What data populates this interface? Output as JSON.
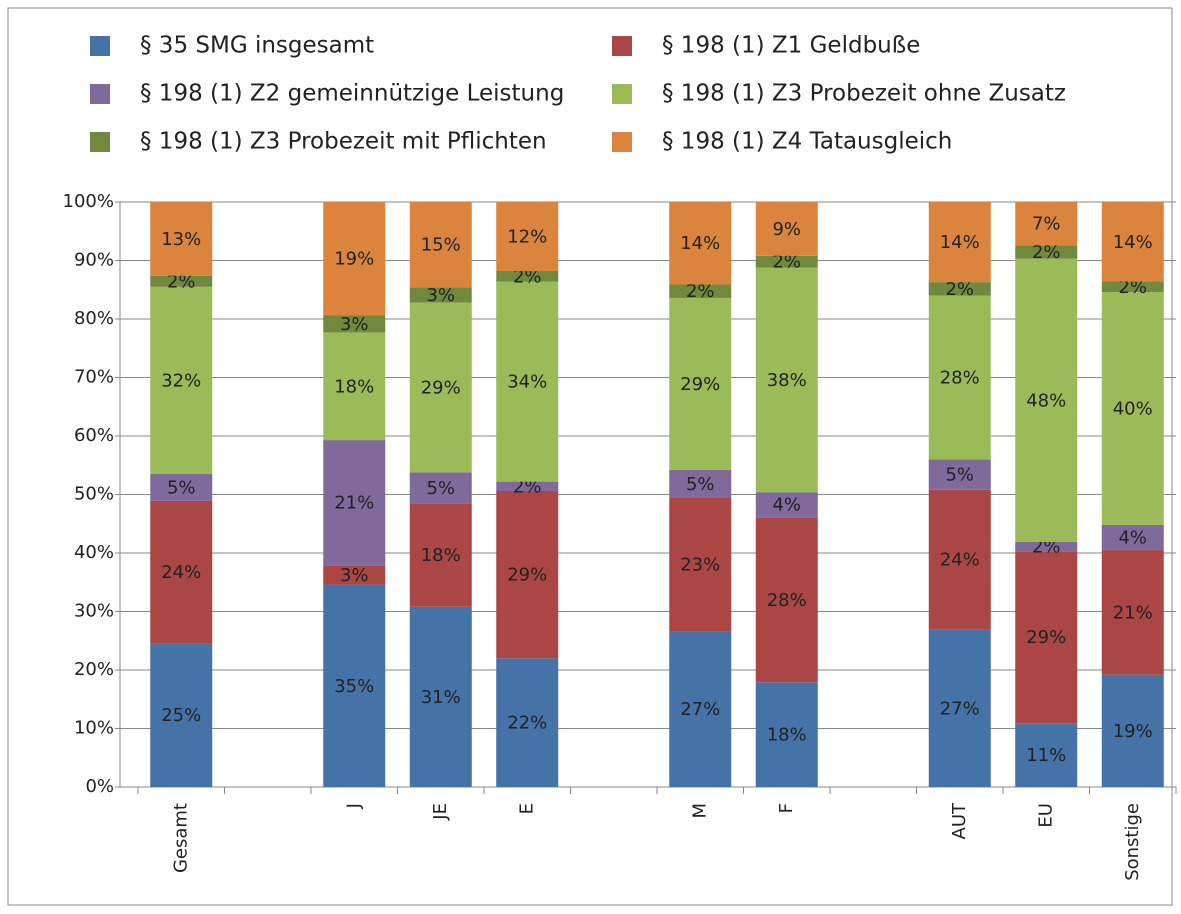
{
  "chart_data": {
    "type": "stacked_bar",
    "categories": [
      "Gesamt",
      null,
      "J",
      "JE",
      "E",
      null,
      "M",
      "F",
      null,
      "AUT",
      "EU",
      "Sonstige"
    ],
    "series": [
      {
        "name": "§ 35 SMG insgesamt",
        "color": "#4572a7",
        "values": [
          24.6,
          null,
          34.6,
          30.8,
          22.0,
          null,
          26.6,
          17.9,
          null,
          26.9,
          10.9,
          19.2
        ],
        "value_labels": [
          "25%",
          null,
          "35%",
          "31%",
          "22%",
          null,
          "27%",
          "18%",
          null,
          "27%",
          "11%",
          "19%"
        ]
      },
      {
        "name": "§ 198 (1) Z1 Geldbuße",
        "color": "#aa4643",
        "values": [
          24.3,
          null,
          3.3,
          17.7,
          28.6,
          null,
          22.8,
          28.2,
          null,
          23.9,
          29.4,
          21.3
        ],
        "value_labels": [
          "24%",
          null,
          "3%",
          "18%",
          "29%",
          null,
          "23%",
          "28%",
          null,
          "24%",
          "29%",
          "21%"
        ]
      },
      {
        "name": "§ 198 (1) Z2 gemeinnützige Leistung",
        "color": "#80699b",
        "values": [
          4.6,
          null,
          21.4,
          5.3,
          1.6,
          null,
          4.8,
          4.3,
          null,
          5.2,
          1.6,
          4.3
        ],
        "value_labels": [
          "5%",
          null,
          "21%",
          "5%",
          "2%",
          null,
          "5%",
          "4%",
          null,
          "5%",
          "2%",
          "4%"
        ]
      },
      {
        "name": "§ 198 (1) Z3 Probezeit ohne Zusatz",
        "color": "#9bbb59",
        "values": [
          32.0,
          null,
          18.4,
          29.0,
          34.2,
          null,
          29.4,
          38.4,
          null,
          28.0,
          48.4,
          39.8
        ],
        "value_labels": [
          "32%",
          null,
          "18%",
          "29%",
          "34%",
          null,
          "29%",
          "38%",
          null,
          "28%",
          "48%",
          "40%"
        ]
      },
      {
        "name": "§ 198 (1) Z3 Probezeit mit Pflichten",
        "color": "#71893f",
        "values": [
          1.9,
          null,
          2.9,
          2.6,
          1.8,
          null,
          2.3,
          2.0,
          null,
          2.3,
          2.3,
          1.8
        ],
        "value_labels": [
          "2%",
          null,
          "3%",
          "3%",
          "2%",
          null,
          "2%",
          "2%",
          null,
          "2%",
          "2%",
          "2%"
        ]
      },
      {
        "name": "§ 198 (1) Z4 Tatausgleich",
        "color": "#db843d",
        "values": [
          12.6,
          null,
          19.4,
          14.6,
          11.8,
          null,
          14.1,
          9.2,
          null,
          13.7,
          7.4,
          13.6
        ],
        "value_labels": [
          "13%",
          null,
          "19%",
          "15%",
          "12%",
          null,
          "14%",
          "9%",
          null,
          "14%",
          "7%",
          "14%"
        ]
      }
    ],
    "ylim": [
      0,
      100
    ],
    "yticks": [
      {
        "value": 0,
        "label": "0%"
      },
      {
        "value": 10,
        "label": "10%"
      },
      {
        "value": 20,
        "label": "20%"
      },
      {
        "value": 30,
        "label": "30%"
      },
      {
        "value": 40,
        "label": "40%"
      },
      {
        "value": 50,
        "label": "50%"
      },
      {
        "value": 60,
        "label": "60%"
      },
      {
        "value": 70,
        "label": "70%"
      },
      {
        "value": 80,
        "label": "80%"
      },
      {
        "value": 90,
        "label": "90%"
      },
      {
        "value": 100,
        "label": "100%"
      }
    ],
    "grid": true,
    "legend": "top"
  }
}
